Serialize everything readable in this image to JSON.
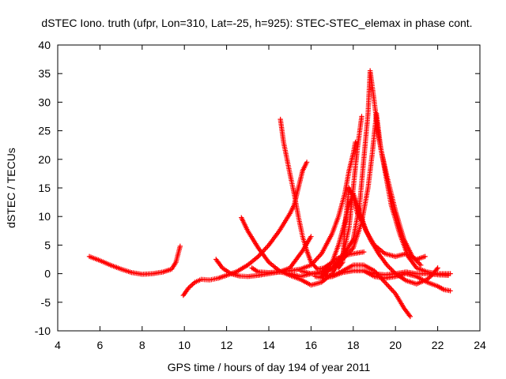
{
  "chart_data": {
    "type": "scatter",
    "title": "dSTEC Iono. truth (ufpr, Lon=310, Lat=-25, h=925): STEC-STEC_elemax in phase cont.",
    "xlabel": "GPS time / hours of day 194 of year 2011",
    "ylabel": "dSTEC  / TECUs",
    "xlim": [
      4,
      24
    ],
    "ylim": [
      -10,
      40
    ],
    "xticks": [
      4,
      6,
      8,
      10,
      12,
      14,
      16,
      18,
      20,
      22,
      24
    ],
    "yticks": [
      -10,
      -5,
      0,
      5,
      10,
      15,
      20,
      25,
      30,
      35,
      40
    ],
    "grid": false,
    "marker": "plus",
    "color": "#ff0000",
    "series": [
      {
        "points": [
          [
            5.5,
            3.0
          ],
          [
            6.0,
            2.3
          ],
          [
            6.5,
            1.5
          ],
          [
            7.0,
            0.8
          ],
          [
            7.5,
            0.2
          ],
          [
            8.0,
            -0.1
          ],
          [
            8.5,
            0.0
          ],
          [
            9.0,
            0.3
          ],
          [
            9.4,
            0.8
          ],
          [
            9.6,
            2.0
          ],
          [
            9.8,
            4.8
          ]
        ]
      },
      {
        "points": [
          [
            9.95,
            -3.8
          ],
          [
            10.2,
            -2.5
          ],
          [
            10.5,
            -1.5
          ],
          [
            10.8,
            -1.0
          ],
          [
            11.2,
            -1.1
          ],
          [
            11.6,
            -0.8
          ],
          [
            12.0,
            -0.3
          ],
          [
            12.5,
            0.4
          ],
          [
            13.0,
            1.5
          ],
          [
            13.5,
            3.0
          ],
          [
            14.0,
            5.0
          ],
          [
            14.5,
            7.5
          ],
          [
            15.0,
            10.5
          ],
          [
            15.2,
            12.0
          ],
          [
            15.4,
            15.0
          ],
          [
            15.6,
            18.0
          ],
          [
            15.8,
            19.5
          ]
        ]
      },
      {
        "points": [
          [
            12.7,
            9.8
          ],
          [
            13.0,
            7.5
          ],
          [
            13.5,
            4.5
          ],
          [
            14.0,
            2.0
          ],
          [
            14.5,
            0.5
          ],
          [
            15.0,
            -0.3
          ],
          [
            15.5,
            -1.0
          ],
          [
            16.0,
            -2.0
          ],
          [
            16.5,
            -1.5
          ],
          [
            17.0,
            0.0
          ],
          [
            17.5,
            3.0
          ],
          [
            17.8,
            8.0
          ],
          [
            18.0,
            15.0
          ],
          [
            18.2,
            22.0
          ],
          [
            18.4,
            27.5
          ]
        ]
      },
      {
        "points": [
          [
            14.55,
            27.0
          ],
          [
            14.7,
            23.0
          ],
          [
            15.0,
            17.5
          ],
          [
            15.2,
            14.0
          ],
          [
            15.4,
            10.0
          ],
          [
            15.6,
            6.5
          ],
          [
            15.8,
            4.0
          ],
          [
            16.0,
            2.0
          ],
          [
            16.3,
            0.8
          ],
          [
            16.6,
            1.0
          ],
          [
            17.0,
            2.0
          ],
          [
            17.4,
            3.0
          ],
          [
            18.0,
            3.5
          ],
          [
            18.5,
            3.8
          ]
        ]
      },
      {
        "points": [
          [
            11.5,
            2.5
          ],
          [
            11.8,
            1.0
          ],
          [
            12.2,
            0.0
          ],
          [
            12.6,
            -0.4
          ],
          [
            13.0,
            -0.5
          ],
          [
            13.5,
            -0.3
          ],
          [
            14.0,
            0.0
          ],
          [
            14.5,
            0.3
          ],
          [
            15.0,
            0.5
          ],
          [
            15.5,
            0.8
          ],
          [
            16.0,
            1.5
          ],
          [
            16.5,
            3.5
          ],
          [
            17.0,
            7.0
          ],
          [
            17.3,
            10.0
          ],
          [
            17.6,
            14.0
          ],
          [
            17.8,
            18.0
          ],
          [
            18.0,
            21.0
          ],
          [
            18.1,
            23.0
          ]
        ]
      },
      {
        "points": [
          [
            13.2,
            1.0
          ],
          [
            13.5,
            0.3
          ],
          [
            14.0,
            0.2
          ],
          [
            14.5,
            0.3
          ],
          [
            15.0,
            1.0
          ],
          [
            15.3,
            2.5
          ],
          [
            15.6,
            4.0
          ],
          [
            16.0,
            6.5
          ]
        ]
      },
      {
        "points": [
          [
            16.5,
            0.0
          ],
          [
            17.0,
            2.0
          ],
          [
            17.3,
            5.0
          ],
          [
            17.6,
            9.0
          ],
          [
            17.8,
            12.0
          ],
          [
            18.0,
            14.0
          ],
          [
            18.3,
            11.0
          ],
          [
            18.6,
            7.5
          ],
          [
            19.0,
            5.0
          ],
          [
            19.5,
            3.5
          ],
          [
            20.0,
            3.0
          ],
          [
            20.5,
            3.5
          ],
          [
            21.0,
            2.5
          ],
          [
            21.4,
            3.0
          ]
        ]
      },
      {
        "points": [
          [
            17.3,
            1.0
          ],
          [
            17.5,
            2.0
          ],
          [
            17.6,
            8.0
          ],
          [
            17.8,
            15.0
          ],
          [
            18.0,
            13.5
          ],
          [
            18.2,
            10.5
          ],
          [
            18.5,
            8.5
          ],
          [
            18.8,
            6.0
          ],
          [
            19.2,
            3.5
          ],
          [
            19.6,
            1.5
          ],
          [
            20.0,
            0.0
          ],
          [
            20.5,
            -1.2
          ],
          [
            21.0,
            -1.8
          ],
          [
            21.5,
            -1.0
          ],
          [
            21.8,
            0.0
          ],
          [
            22.0,
            1.0
          ]
        ]
      },
      {
        "points": [
          [
            16.5,
            -0.5
          ],
          [
            17.0,
            1.0
          ],
          [
            17.5,
            3.0
          ],
          [
            18.0,
            6.0
          ],
          [
            18.3,
            12.0
          ],
          [
            18.5,
            20.0
          ],
          [
            18.7,
            28.0
          ],
          [
            18.8,
            35.5
          ],
          [
            19.0,
            30.0
          ],
          [
            19.2,
            24.0
          ],
          [
            19.5,
            18.0
          ],
          [
            19.8,
            12.0
          ],
          [
            20.2,
            7.0
          ],
          [
            20.6,
            3.0
          ],
          [
            21.0,
            1.0
          ],
          [
            21.5,
            0.3
          ],
          [
            22.0,
            0.0
          ],
          [
            22.6,
            0.0
          ]
        ]
      },
      {
        "points": [
          [
            15.5,
            0.5
          ],
          [
            16.0,
            0.0
          ],
          [
            16.5,
            0.3
          ],
          [
            17.0,
            1.0
          ],
          [
            17.5,
            2.5
          ],
          [
            18.0,
            4.5
          ],
          [
            18.4,
            9.0
          ],
          [
            18.7,
            15.0
          ],
          [
            18.9,
            21.0
          ],
          [
            19.1,
            28.0
          ],
          [
            19.3,
            22.0
          ],
          [
            19.6,
            17.0
          ],
          [
            20.0,
            11.0
          ],
          [
            20.4,
            6.0
          ],
          [
            20.8,
            3.0
          ],
          [
            21.2,
            1.5
          ]
        ]
      },
      {
        "points": [
          [
            14.5,
            0.3
          ],
          [
            15.0,
            0.0
          ],
          [
            15.5,
            -0.5
          ],
          [
            16.0,
            0.0
          ],
          [
            16.5,
            0.0
          ],
          [
            17.0,
            -0.5
          ],
          [
            17.5,
            0.2
          ],
          [
            18.0,
            0.5
          ],
          [
            18.5,
            0.5
          ],
          [
            19.0,
            0.0
          ],
          [
            19.5,
            -0.2
          ],
          [
            20.0,
            0.0
          ],
          [
            20.5,
            0.3
          ],
          [
            21.0,
            0.0
          ],
          [
            21.5,
            0.0
          ],
          [
            22.0,
            -0.2
          ],
          [
            22.5,
            -0.3
          ]
        ]
      },
      {
        "points": [
          [
            16.2,
            -0.5
          ],
          [
            16.6,
            -0.8
          ],
          [
            17.0,
            -0.5
          ],
          [
            17.5,
            0.5
          ],
          [
            18.0,
            1.5
          ],
          [
            18.5,
            1.5
          ],
          [
            19.0,
            0.5
          ],
          [
            19.5,
            -1.5
          ],
          [
            20.0,
            -3.5
          ],
          [
            20.4,
            -6.0
          ],
          [
            20.7,
            -7.5
          ]
        ]
      },
      {
        "points": [
          [
            18.5,
            0.5
          ],
          [
            19.0,
            -0.5
          ],
          [
            19.5,
            -0.8
          ],
          [
            20.0,
            -0.5
          ],
          [
            20.5,
            0.0
          ],
          [
            21.0,
            -0.5
          ],
          [
            21.5,
            -1.5
          ],
          [
            22.0,
            -2.2
          ],
          [
            22.3,
            -2.8
          ],
          [
            22.6,
            -3.0
          ]
        ]
      }
    ]
  }
}
